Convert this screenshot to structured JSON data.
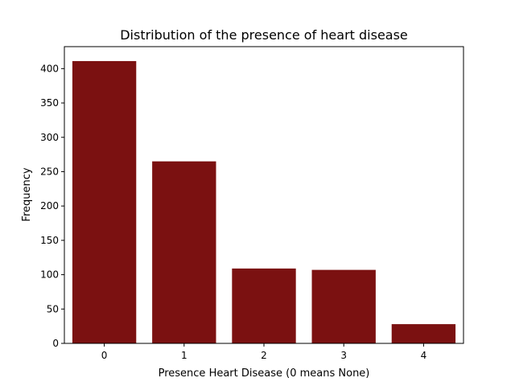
{
  "chart_data": {
    "type": "bar",
    "title": "Distribution of the presence of heart disease",
    "xlabel": "Presence Heart Disease (0 means None)",
    "ylabel": "Frequency",
    "categories": [
      "0",
      "1",
      "2",
      "3",
      "4"
    ],
    "values": [
      411,
      265,
      109,
      107,
      28
    ],
    "ylim": [
      0,
      432
    ],
    "yticks": [
      0,
      50,
      100,
      150,
      200,
      250,
      300,
      350,
      400
    ],
    "bar_color": "#7b1111",
    "grid": false,
    "legend": "none"
  }
}
